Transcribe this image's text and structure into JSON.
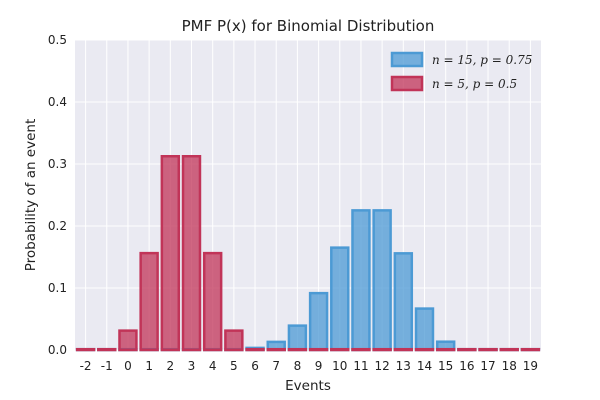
{
  "chart_data": {
    "type": "bar",
    "title": "PMF P(x) for Binomial Distribution",
    "xlabel": "Events",
    "ylabel": "Probability of an event",
    "xlim": [
      -2.5,
      19.5
    ],
    "ylim": [
      0,
      0.5
    ],
    "yticks": [
      "0.0",
      "0.1",
      "0.2",
      "0.3",
      "0.4",
      "0.5"
    ],
    "categories": [
      "-2",
      "-1",
      "0",
      "1",
      "2",
      "3",
      "4",
      "5",
      "6",
      "7",
      "8",
      "9",
      "10",
      "11",
      "12",
      "13",
      "14",
      "15",
      "16",
      "17",
      "18",
      "19"
    ],
    "grid": true,
    "legend_position": "top-right",
    "series": [
      {
        "name": "n = 15, p = 0.75",
        "color": "#4c9ad4",
        "values": [
          0,
          0,
          0,
          0,
          0,
          0,
          0,
          0.0007,
          0.0034,
          0.0131,
          0.0393,
          0.0917,
          0.1651,
          0.2252,
          0.2252,
          0.1559,
          0.0668,
          0.0134,
          0,
          0,
          0,
          0
        ]
      },
      {
        "name": "n = 5, p = 0.5",
        "color": "#c13458",
        "values": [
          0,
          0,
          0.03125,
          0.15625,
          0.3125,
          0.3125,
          0.15625,
          0.03125,
          0,
          0,
          0,
          0,
          0,
          0,
          0,
          0,
          0,
          0,
          0,
          0,
          0,
          0
        ]
      }
    ]
  }
}
